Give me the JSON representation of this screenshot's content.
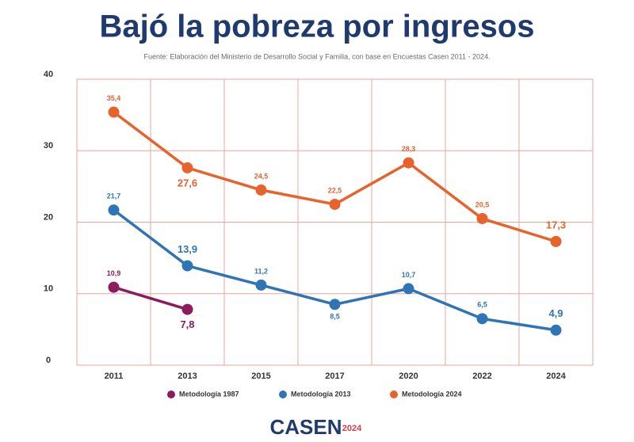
{
  "chart_data": {
    "type": "line",
    "title": "Bajó la pobreza por ingresos",
    "subtitle": "Fuente: Elaboración del Ministerio de Desarrollo Social y Familia, con base en Encuestas Casen 2011 - 2024.",
    "categories": [
      "2011",
      "2013",
      "2015",
      "2017",
      "2020",
      "2022",
      "2024"
    ],
    "series": [
      {
        "name": "Metodología 1987",
        "color": "#8b1c5e",
        "values": [
          10.9,
          7.8,
          null,
          null,
          null,
          null,
          null
        ],
        "value_labels": [
          "10,9",
          "7,8",
          null,
          null,
          null,
          null,
          null
        ]
      },
      {
        "name": "Metodología 2013",
        "color": "#2f74b5",
        "values": [
          21.7,
          13.9,
          11.2,
          8.5,
          10.7,
          6.5,
          4.9
        ],
        "value_labels": [
          "21,7",
          "13,9",
          "11,2",
          "8,5",
          "10,7",
          "6,5",
          "4,9"
        ]
      },
      {
        "name": "Metodología 2024",
        "color": "#e8622c",
        "values": [
          35.4,
          27.6,
          24.5,
          22.5,
          28.3,
          20.5,
          17.3
        ],
        "value_labels": [
          "35,4",
          "27,6",
          "24,5",
          "22,5",
          "28,3",
          "20,5",
          "17,3"
        ]
      }
    ],
    "ylim": [
      0,
      40
    ],
    "yticks": [
      0,
      10,
      20,
      30,
      40
    ],
    "grid": true,
    "legend": "bottom",
    "logo": "CASEN",
    "logo_year": "2024"
  }
}
